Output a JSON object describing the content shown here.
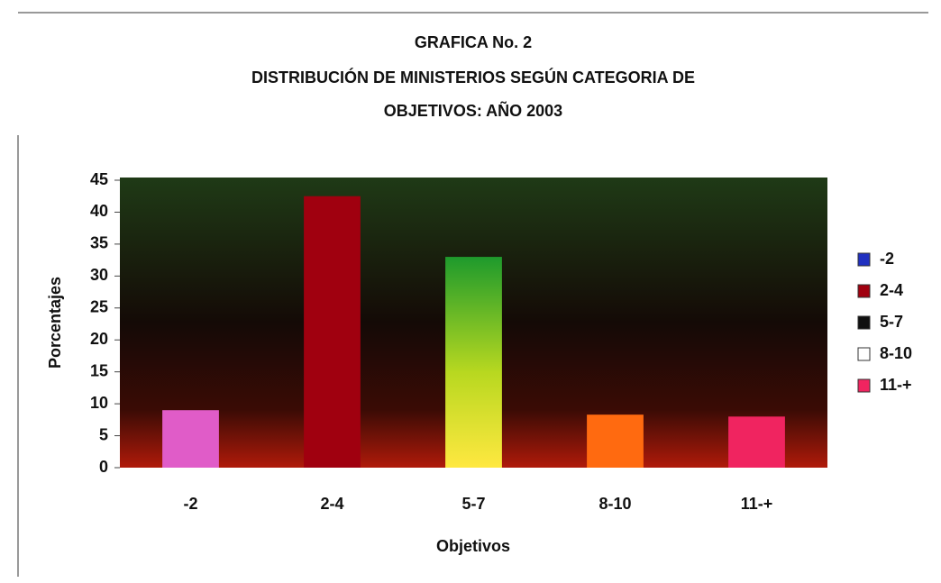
{
  "chart_data": {
    "type": "bar",
    "title": [
      "GRAFICA No. 2",
      "DISTRIBUCIÓN DE MINISTERIOS SEGÚN CATEGORIA DE",
      "OBJETIVOS: AÑO 2003"
    ],
    "x_label": "Objetivos",
    "y_label": "Porcentajes",
    "categories": [
      "-2",
      "2-4",
      "5-7",
      "8-10",
      "11-+"
    ],
    "values": [
      9,
      42.5,
      33,
      8.3,
      8
    ],
    "colors": [
      "#e05cc8",
      "#a0000f",
      "#2ea82a",
      "#ff6a10",
      "#f02460"
    ],
    "legend_colors": [
      "#2030c0",
      "#a0000f",
      "#101010",
      "#ffffff",
      "#f02460"
    ],
    "ylim": [
      0,
      45
    ],
    "yticks": [
      0,
      5,
      10,
      15,
      20,
      25,
      30,
      35,
      40,
      45
    ],
    "legend": "right"
  }
}
